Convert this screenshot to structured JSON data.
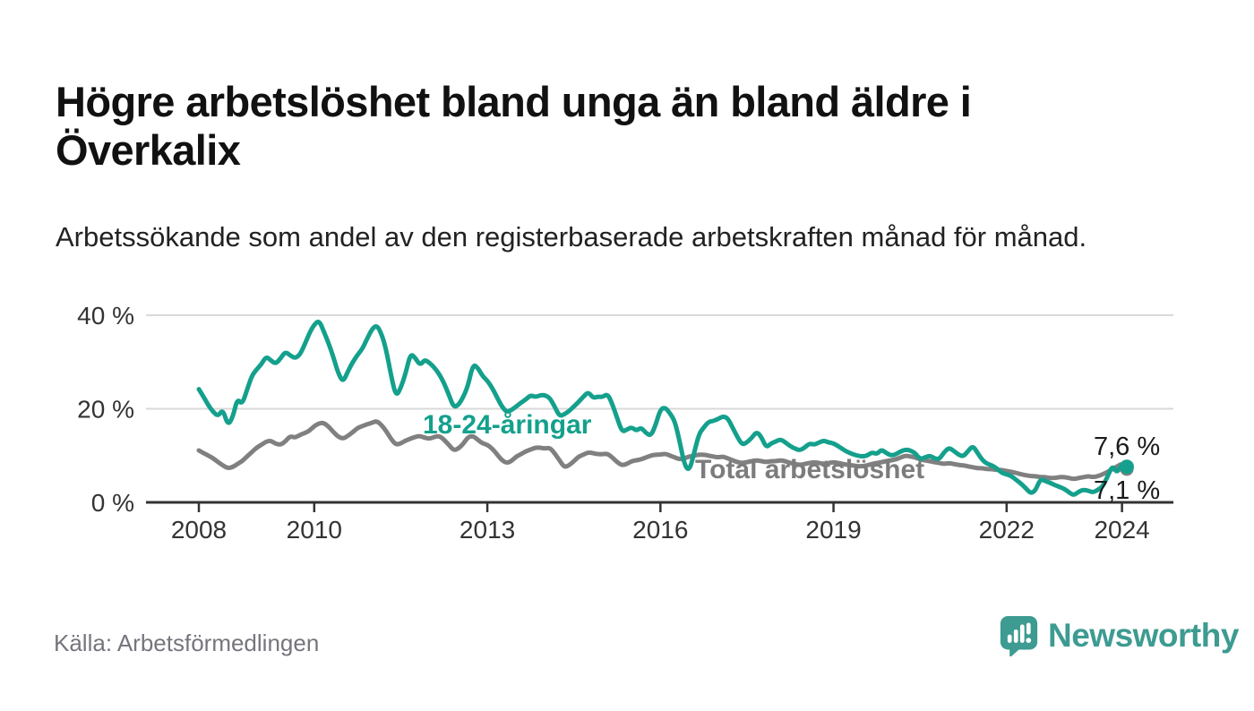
{
  "header": {
    "title": "Högre arbetslöshet bland unga än bland äldre i Överkalix",
    "subtitle": "Arbetssökande som andel av den registerbaserade arbetskraften månad för månad."
  },
  "footer": {
    "source": "Källa: Arbetsförmedlingen",
    "brand": "Newsworthy",
    "brand_icon": "newsworthy-speech-bubble-bar-chart-icon"
  },
  "colors": {
    "youth": "#14a08c",
    "total": "#808080",
    "axis": "#333333",
    "grid": "#d9d9d9",
    "tick_text": "#333333",
    "end_label_text": "#1a1a1a",
    "muted_text": "#75757d",
    "brand": "#3d9b91"
  },
  "chart_data": {
    "type": "line",
    "title": "Högre arbetslöshet bland unga än bland äldre i Överkalix",
    "xlabel": "",
    "ylabel": "",
    "y_unit": "%",
    "x_start": {
      "year": 2008,
      "month": 1
    },
    "x_end": {
      "year": 2024,
      "month": 2
    },
    "frequency": "monthly",
    "grid": "horizontal",
    "ylim": [
      0,
      42
    ],
    "y_ticks": [
      {
        "value": 0,
        "label": "0 %"
      },
      {
        "value": 20,
        "label": "20 %"
      },
      {
        "value": 40,
        "label": "40 %"
      }
    ],
    "x_ticks": [
      {
        "year": 2008,
        "label": "2008"
      },
      {
        "year": 2010,
        "label": "2010"
      },
      {
        "year": 2013,
        "label": "2013"
      },
      {
        "year": 2016,
        "label": "2016"
      },
      {
        "year": 2019,
        "label": "2019"
      },
      {
        "year": 2022,
        "label": "2022"
      },
      {
        "year": 2024,
        "label": "2024"
      }
    ],
    "series": [
      {
        "id": "youth",
        "name": "18-24-åringar",
        "color": "#14a08c",
        "end_label": "7,6 %",
        "last_value": 7.6,
        "values": [
          24.2,
          22.5,
          20.7,
          19.3,
          18.4,
          19.9,
          16.5,
          18.0,
          22.2,
          20.9,
          24.0,
          27.0,
          28.4,
          29.5,
          31.2,
          30.3,
          29.6,
          30.8,
          32.2,
          31.4,
          30.8,
          31.5,
          33.7,
          36.2,
          38.0,
          38.9,
          36.5,
          34.0,
          31.0,
          27.5,
          25.7,
          28.0,
          30.0,
          31.5,
          32.8,
          35.0,
          37.0,
          37.9,
          36.0,
          32.5,
          27.0,
          22.6,
          24.5,
          27.5,
          31.8,
          30.9,
          29.3,
          30.5,
          29.8,
          28.8,
          27.4,
          25.5,
          23.0,
          20.3,
          20.8,
          22.5,
          25.0,
          29.5,
          28.8,
          27.0,
          26.0,
          24.5,
          22.5,
          20.5,
          19.3,
          19.7,
          20.5,
          21.3,
          22.0,
          22.9,
          22.5,
          22.9,
          22.9,
          22.3,
          20.5,
          18.4,
          18.8,
          19.5,
          20.5,
          21.5,
          22.6,
          23.6,
          22.3,
          22.6,
          22.5,
          23.2,
          21.0,
          18.0,
          15.1,
          15.5,
          16.1,
          15.3,
          16.0,
          14.8,
          14.2,
          16.5,
          19.9,
          20.3,
          19.0,
          17.4,
          13.0,
          8.0,
          6.7,
          10.5,
          14.6,
          16.0,
          17.2,
          17.4,
          17.8,
          18.4,
          18.0,
          16.0,
          14.0,
          12.3,
          12.8,
          13.8,
          15.1,
          14.0,
          11.7,
          12.6,
          13.0,
          13.5,
          12.8,
          12.0,
          11.5,
          11.1,
          11.7,
          12.6,
          12.3,
          12.8,
          13.2,
          12.8,
          12.6,
          12.0,
          11.3,
          10.7,
          10.3,
          10.0,
          9.8,
          10.0,
          10.7,
          10.3,
          11.3,
          10.5,
          10.0,
          10.3,
          10.9,
          11.3,
          11.1,
          10.5,
          9.2,
          9.6,
          10.0,
          9.4,
          9.2,
          10.7,
          11.7,
          11.0,
          10.2,
          9.8,
          11.0,
          12.1,
          10.5,
          9.0,
          8.2,
          7.9,
          7.2,
          6.3,
          6.0,
          5.6,
          4.8,
          4.0,
          3.0,
          1.9,
          2.5,
          5.0,
          4.6,
          4.2,
          3.7,
          3.3,
          2.9,
          2.1,
          1.5,
          2.3,
          2.7,
          2.5,
          2.1,
          2.7,
          3.4,
          5.5,
          7.9,
          6.2,
          8.3,
          7.6
        ]
      },
      {
        "id": "total",
        "name": "Total arbetslöshet",
        "color": "#808080",
        "end_label": "7,1 %",
        "last_value": 7.1,
        "values": [
          11.1,
          10.5,
          10.0,
          9.4,
          8.6,
          7.9,
          7.3,
          7.5,
          8.2,
          8.8,
          9.8,
          10.7,
          11.7,
          12.3,
          13.0,
          13.2,
          12.5,
          12.3,
          13.0,
          14.2,
          13.8,
          14.4,
          14.8,
          15.3,
          16.3,
          16.9,
          17.0,
          16.2,
          15.0,
          14.0,
          13.6,
          14.2,
          15.0,
          15.9,
          16.3,
          16.7,
          17.0,
          17.4,
          16.5,
          15.2,
          13.5,
          12.3,
          12.6,
          13.2,
          13.6,
          14.0,
          14.2,
          13.8,
          13.6,
          14.0,
          14.2,
          13.4,
          12.3,
          11.1,
          11.5,
          12.5,
          14.0,
          14.2,
          13.4,
          12.6,
          12.3,
          11.5,
          10.3,
          9.0,
          8.4,
          8.8,
          9.8,
          10.3,
          10.9,
          11.3,
          11.7,
          11.7,
          11.5,
          11.7,
          10.5,
          9.0,
          7.5,
          7.9,
          8.8,
          9.8,
          10.2,
          10.7,
          10.5,
          10.3,
          10.3,
          10.4,
          9.6,
          8.6,
          7.9,
          8.2,
          8.8,
          9.0,
          9.2,
          9.6,
          10.0,
          10.2,
          10.2,
          10.4,
          10.0,
          9.6,
          9.2,
          9.4,
          9.8,
          10.0,
          10.2,
          10.2,
          10.0,
          9.8,
          9.6,
          9.8,
          9.4,
          9.0,
          8.6,
          8.4,
          8.6,
          8.8,
          9.0,
          8.8,
          8.6,
          8.8,
          8.8,
          9.0,
          8.8,
          8.4,
          8.2,
          8.0,
          8.2,
          8.4,
          8.6,
          8.4,
          8.2,
          8.4,
          8.6,
          8.4,
          8.2,
          8.0,
          7.9,
          7.7,
          7.7,
          7.9,
          8.2,
          8.4,
          8.6,
          8.8,
          9.0,
          9.2,
          9.6,
          10.0,
          9.8,
          9.6,
          9.2,
          9.0,
          8.8,
          8.6,
          8.4,
          8.2,
          8.4,
          8.2,
          8.0,
          7.9,
          7.7,
          7.5,
          7.3,
          7.3,
          7.1,
          7.1,
          6.9,
          6.9,
          6.7,
          6.5,
          6.3,
          6.0,
          5.8,
          5.6,
          5.6,
          5.4,
          5.4,
          5.2,
          5.2,
          5.4,
          5.4,
          5.2,
          5.0,
          5.2,
          5.4,
          5.6,
          5.4,
          5.6,
          6.0,
          6.5,
          7.1,
          7.7,
          8.3,
          7.1
        ]
      }
    ]
  }
}
